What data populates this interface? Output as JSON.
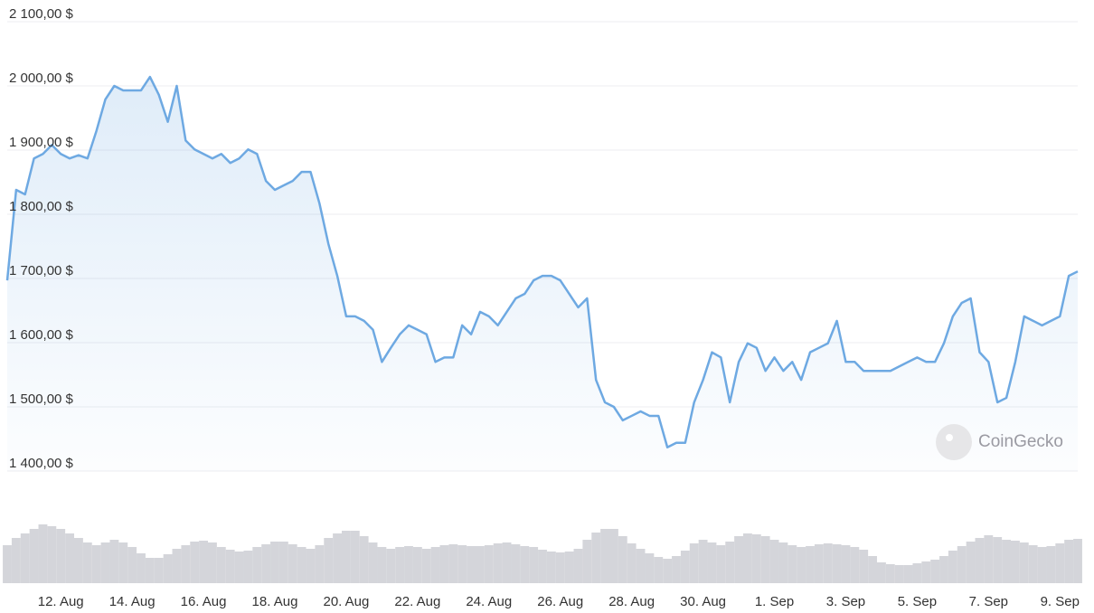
{
  "chart_data": {
    "type": "line",
    "categories": [
      null,
      null,
      null,
      null,
      null,
      null,
      "12. Aug",
      null,
      null,
      null,
      null,
      null,
      null,
      null,
      "14. Aug",
      null,
      null,
      null,
      null,
      null,
      null,
      null,
      "16. Aug",
      null,
      null,
      null,
      null,
      null,
      null,
      null,
      "18. Aug",
      null,
      null,
      null,
      null,
      null,
      null,
      null,
      "20. Aug",
      null,
      null,
      null,
      null,
      null,
      null,
      null,
      "22. Aug",
      null,
      null,
      null,
      null,
      null,
      null,
      null,
      "24. Aug",
      null,
      null,
      null,
      null,
      null,
      null,
      null,
      "26. Aug",
      null,
      null,
      null,
      null,
      null,
      null,
      null,
      "28. Aug",
      null,
      null,
      null,
      null,
      null,
      null,
      null,
      "30. Aug",
      null,
      null,
      null,
      null,
      null,
      null,
      null,
      "1. Sep",
      null,
      null,
      null,
      null,
      null,
      null,
      null,
      "3. Sep",
      null,
      null,
      null,
      null,
      null,
      null,
      null,
      "5. Sep",
      null,
      null,
      null,
      null,
      null,
      null,
      null,
      "7. Sep",
      null,
      null,
      null,
      null,
      null,
      null,
      null,
      "9. Sep",
      null,
      null
    ],
    "series": [
      {
        "color": "#6ea9e2",
        "values": [
          1697,
          1838,
          1831,
          1887,
          1894,
          1908,
          1894,
          1887,
          1892,
          1887,
          1930,
          1979,
          2000,
          1993,
          1993,
          1993,
          2014,
          1986,
          1944,
          2000,
          1915,
          1901,
          1894,
          1887,
          1894,
          1880,
          1887,
          1901,
          1894,
          1852,
          1838,
          1845,
          1852,
          1866,
          1866,
          1817,
          1754,
          1704,
          1641,
          1641,
          1634,
          1620,
          1570,
          1592,
          1613,
          1627,
          1620,
          1613,
          1570,
          1577,
          1577,
          1627,
          1613,
          1648,
          1641,
          1627,
          1648,
          1669,
          1676,
          1697,
          1704,
          1704,
          1697,
          1676,
          1655,
          1669,
          1542,
          1507,
          1500,
          1479,
          1486,
          1493,
          1486,
          1486,
          1437,
          1444,
          1444,
          1507,
          1542,
          1585,
          1577,
          1507,
          1570,
          1599,
          1592,
          1556,
          1577,
          1556,
          1570,
          1542,
          1585,
          1592,
          1599,
          1634,
          1570,
          1570,
          1556,
          1556,
          1556,
          1556,
          1563,
          1570,
          1577,
          1570,
          1570,
          1599,
          1641,
          1662,
          1669,
          1585,
          1570,
          1507,
          1514,
          1570,
          1641,
          1634,
          1627,
          1634,
          1641,
          1704,
          1711
        ]
      },
      {
        "type": "bar",
        "axis": "y2",
        "color": "#d4d5da",
        "values": [
          42,
          50,
          55,
          60,
          65,
          63,
          60,
          55,
          50,
          45,
          42,
          45,
          48,
          45,
          40,
          33,
          28,
          28,
          32,
          38,
          42,
          46,
          47,
          45,
          40,
          37,
          35,
          36,
          40,
          43,
          46,
          46,
          43,
          40,
          38,
          42,
          50,
          55,
          58,
          58,
          52,
          45,
          40,
          38,
          40,
          41,
          40,
          38,
          40,
          42,
          43,
          42,
          41,
          41,
          42,
          44,
          45,
          43,
          41,
          40,
          37,
          35,
          34,
          35,
          38,
          48,
          56,
          60,
          60,
          52,
          44,
          38,
          33,
          29,
          27,
          30,
          36,
          44,
          48,
          45,
          42,
          46,
          52,
          55,
          54,
          52,
          48,
          45,
          42,
          40,
          41,
          43,
          44,
          43,
          42,
          40,
          37,
          30,
          23,
          21,
          20,
          20,
          22,
          24,
          26,
          30,
          36,
          41,
          46,
          50,
          53,
          51,
          48,
          47,
          45,
          42,
          40,
          41,
          44,
          48,
          49
        ]
      }
    ],
    "ylim": [
      1400,
      2100
    ],
    "yticks": [
      {
        "value": 1400,
        "label": "1 400,00 $"
      },
      {
        "value": 1500,
        "label": "1 500,00 $"
      },
      {
        "value": 1600,
        "label": "1 600,00 $"
      },
      {
        "value": 1700,
        "label": "1 700,00 $"
      },
      {
        "value": 1800,
        "label": "1 800,00 $"
      },
      {
        "value": 1900,
        "label": "1 900,00 $"
      },
      {
        "value": 2000,
        "label": "2 000,00 $"
      },
      {
        "value": 2100,
        "label": "2 100,00 $"
      }
    ],
    "y2lim": [
      0,
      70
    ],
    "grid": true,
    "watermark": "CoinGecko"
  }
}
